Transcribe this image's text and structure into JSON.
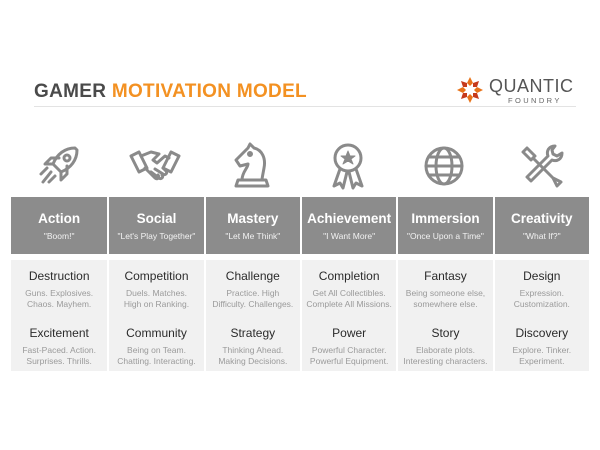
{
  "header": {
    "title_part1": "GAMER",
    "title_part2": "MOTIVATION MODEL",
    "brand_name": "QUANTIC",
    "brand_sub": "FOUNDRY"
  },
  "colors": {
    "accent": "#f39122",
    "header_band": "#8c8c8c",
    "cell_bg": "#f1f1f1",
    "icon": "#8a8a8a"
  },
  "columns": [
    {
      "icon": "rocket-icon",
      "title": "Action",
      "quote": "\"Boom!\"",
      "items": [
        {
          "title": "Destruction",
          "desc1": "Guns. Explosives.",
          "desc2": "Chaos. Mayhem."
        },
        {
          "title": "Excitement",
          "desc1": "Fast-Paced. Action.",
          "desc2": "Surprises. Thrills."
        }
      ]
    },
    {
      "icon": "handshake-icon",
      "title": "Social",
      "quote": "\"Let's Play Together\"",
      "items": [
        {
          "title": "Competition",
          "desc1": "Duels. Matches.",
          "desc2": "High on Ranking."
        },
        {
          "title": "Community",
          "desc1": "Being on Team.",
          "desc2": "Chatting. Interacting."
        }
      ]
    },
    {
      "icon": "chess-knight-icon",
      "title": "Mastery",
      "quote": "\"Let Me Think\"",
      "items": [
        {
          "title": "Challenge",
          "desc1": "Practice. High",
          "desc2": "Difficulty. Challenges."
        },
        {
          "title": "Strategy",
          "desc1": "Thinking Ahead.",
          "desc2": "Making Decisions."
        }
      ]
    },
    {
      "icon": "medal-icon",
      "title": "Achievement",
      "quote": "\"I Want More\"",
      "items": [
        {
          "title": "Completion",
          "desc1": "Get All Collectibles.",
          "desc2": "Complete All Missions."
        },
        {
          "title": "Power",
          "desc1": "Powerful Character.",
          "desc2": "Powerful Equipment."
        }
      ]
    },
    {
      "icon": "globe-icon",
      "title": "Immersion",
      "quote": "\"Once Upon a Time\"",
      "items": [
        {
          "title": "Fantasy",
          "desc1": "Being someone else,",
          "desc2": "somewhere else."
        },
        {
          "title": "Story",
          "desc1": "Elaborate plots.",
          "desc2": "Interesting characters."
        }
      ]
    },
    {
      "icon": "tools-icon",
      "title": "Creativity",
      "quote": "\"What If?\"",
      "items": [
        {
          "title": "Design",
          "desc1": "Expression.",
          "desc2": "Customization."
        },
        {
          "title": "Discovery",
          "desc1": "Explore. Tinker.",
          "desc2": "Experiment."
        }
      ]
    }
  ]
}
